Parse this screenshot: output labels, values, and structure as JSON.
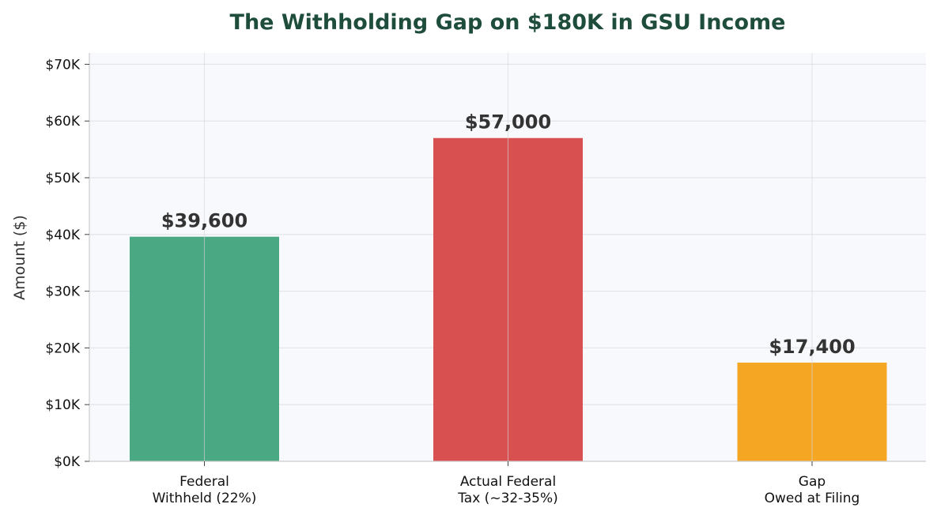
{
  "chart_data": {
    "type": "bar",
    "title": "The Withholding Gap on $180K in GSU Income",
    "xlabel": "",
    "ylabel": "Amount ($)",
    "ylim": [
      0,
      72000
    ],
    "y_ticks": [
      0,
      10000,
      20000,
      30000,
      40000,
      50000,
      60000,
      70000
    ],
    "y_tick_labels": [
      "$0K",
      "$10K",
      "$20K",
      "$30K",
      "$40K",
      "$50K",
      "$60K",
      "$70K"
    ],
    "categories": [
      [
        "Federal",
        "Withheld (22%)"
      ],
      [
        "Actual Federal",
        "Tax (~32-35%)"
      ],
      [
        "Gap",
        "Owed at Filing"
      ]
    ],
    "values": [
      39600,
      57000,
      17400
    ],
    "data_labels": [
      "$39,600",
      "$57,000",
      "$17,400"
    ],
    "colors": [
      "#4aa882",
      "#d95050",
      "#f5a623"
    ],
    "grid": true
  },
  "style": {
    "title_color": "#1e4d3b",
    "plot_background": "#f8f9fc",
    "grid_color": "#e4e6ec",
    "axis_color": "#cccccc"
  }
}
